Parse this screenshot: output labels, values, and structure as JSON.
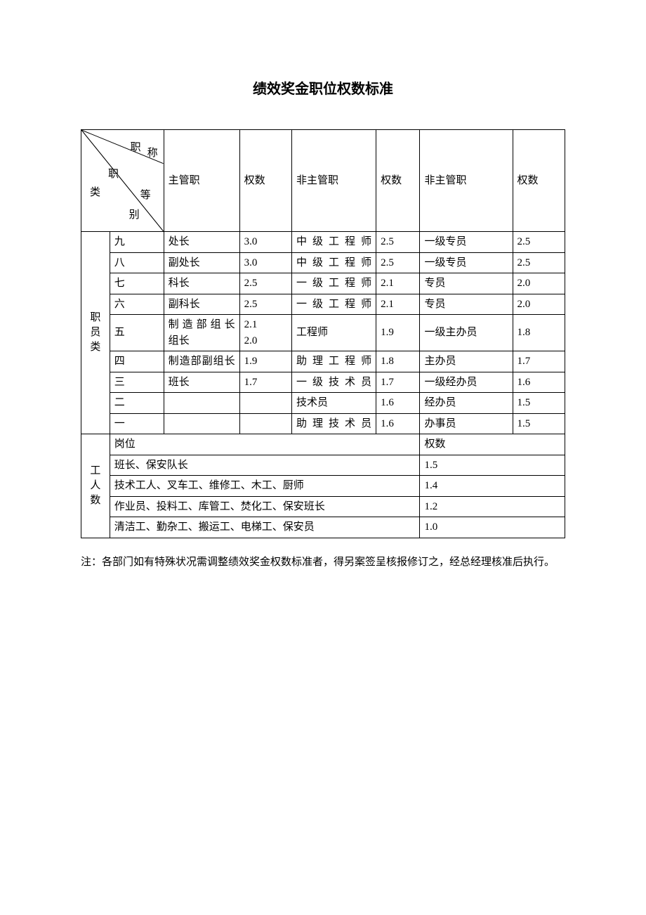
{
  "title": "绩效奖金职位权数标准",
  "header": {
    "diagonal": {
      "top_right": "职",
      "top_right2": "称",
      "mid": "职",
      "left": "类",
      "grade": "等",
      "bie": "别"
    },
    "col_pos1": "主管职",
    "col_w1": "权数",
    "col_pos2": "非主管职",
    "col_w2": "权数",
    "col_pos3": "非主管职",
    "col_w3": "权数"
  },
  "staff_category_label": "职员类",
  "staff_rows": [
    {
      "level": "九",
      "pos1": "处长",
      "w1": "3.0",
      "pos2": "中级工程师",
      "w2": "2.5",
      "pos3": "一级专员",
      "w3": "2.5",
      "pos2_justify": true
    },
    {
      "level": "八",
      "pos1": "副处长",
      "w1": "3.0",
      "pos2": "中级工程师",
      "w2": "2.5",
      "pos3": "一级专员",
      "w3": "2.5",
      "pos2_justify": true
    },
    {
      "level": "七",
      "pos1": "科长",
      "w1": "2.5",
      "pos2": "一级工程师",
      "w2": "2.1",
      "pos3": "专员",
      "w3": "2.0",
      "pos2_justify": true
    },
    {
      "level": "六",
      "pos1": "副科长",
      "w1": "2.5",
      "pos2": "一级工程师",
      "w2": "2.1",
      "pos3": "专员",
      "w3": "2.0",
      "pos2_justify": true
    },
    {
      "level": "五",
      "pos1": "制造部组长\n组长",
      "w1": "2.1\n2.0",
      "pos2": "工程师",
      "w2": "1.9",
      "pos3": "一级主办员",
      "w3": "1.8",
      "pos1_justify_first": true
    },
    {
      "level": "四",
      "pos1": "制造部副组长",
      "w1": "1.9",
      "pos2": "助理工程师",
      "w2": "1.8",
      "pos3": "主办员",
      "w3": "1.7",
      "pos1_justify": true,
      "pos2_justify": true
    },
    {
      "level": "三",
      "pos1": "班长",
      "w1": "1.7",
      "pos2": "一级技术员",
      "w2": "1.7",
      "pos3": "一级经办员",
      "w3": "1.6",
      "pos2_justify": true
    },
    {
      "level": "二",
      "pos1": "",
      "w1": "",
      "pos2": "技术员",
      "w2": "1.6",
      "pos3": "经办员",
      "w3": "1.5"
    },
    {
      "level": "一",
      "pos1": "",
      "w1": "",
      "pos2": "助理技术员",
      "w2": "1.6",
      "pos3": "办事员",
      "w3": "1.5",
      "pos2_justify": true
    }
  ],
  "worker_category_label": "工人数",
  "worker_header": {
    "label": "岗位",
    "weight": "权数"
  },
  "worker_rows": [
    {
      "label": "班长、保安队长",
      "weight": "1.5"
    },
    {
      "label": "技术工人、叉车工、维修工、木工、厨师",
      "weight": "1.4"
    },
    {
      "label": "作业员、投料工、库管工、焚化工、保安班长",
      "weight": "1.2"
    },
    {
      "label": "清洁工、勤杂工、搬运工、电梯工、保安员",
      "weight": "1.0"
    }
  ],
  "footnote": "注：各部门如有特殊状况需调整绩效奖金权数标准者，得另案签呈核报修订之，经总理核准后执行。",
  "footnote_text": "注：各部门如有特殊状况需调整绩效奖金权数标准者，得另案签呈核报修订之，经总经理核准后执行。"
}
